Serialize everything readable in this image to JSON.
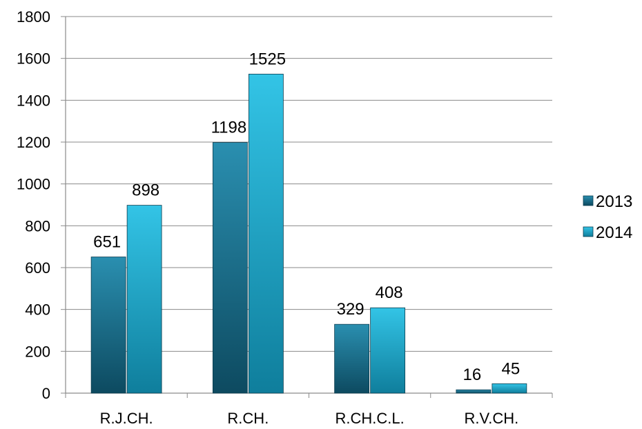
{
  "chart_data": {
    "type": "bar",
    "categories": [
      "R.J.CH.",
      "R.CH.",
      "R.CH.C.L.",
      "R.V.CH."
    ],
    "series": [
      {
        "name": "2013",
        "values": [
          651,
          1198,
          329,
          16
        ],
        "color": "#1f6f8b"
      },
      {
        "name": "2014",
        "values": [
          898,
          1525,
          408,
          45
        ],
        "color": "#29b6d6"
      }
    ],
    "yticks": [
      0,
      200,
      400,
      600,
      800,
      1000,
      1200,
      1400,
      1600,
      1800
    ],
    "ylim": [
      0,
      1800
    ],
    "grid": true,
    "legend_position": "right",
    "data_labels": true
  }
}
